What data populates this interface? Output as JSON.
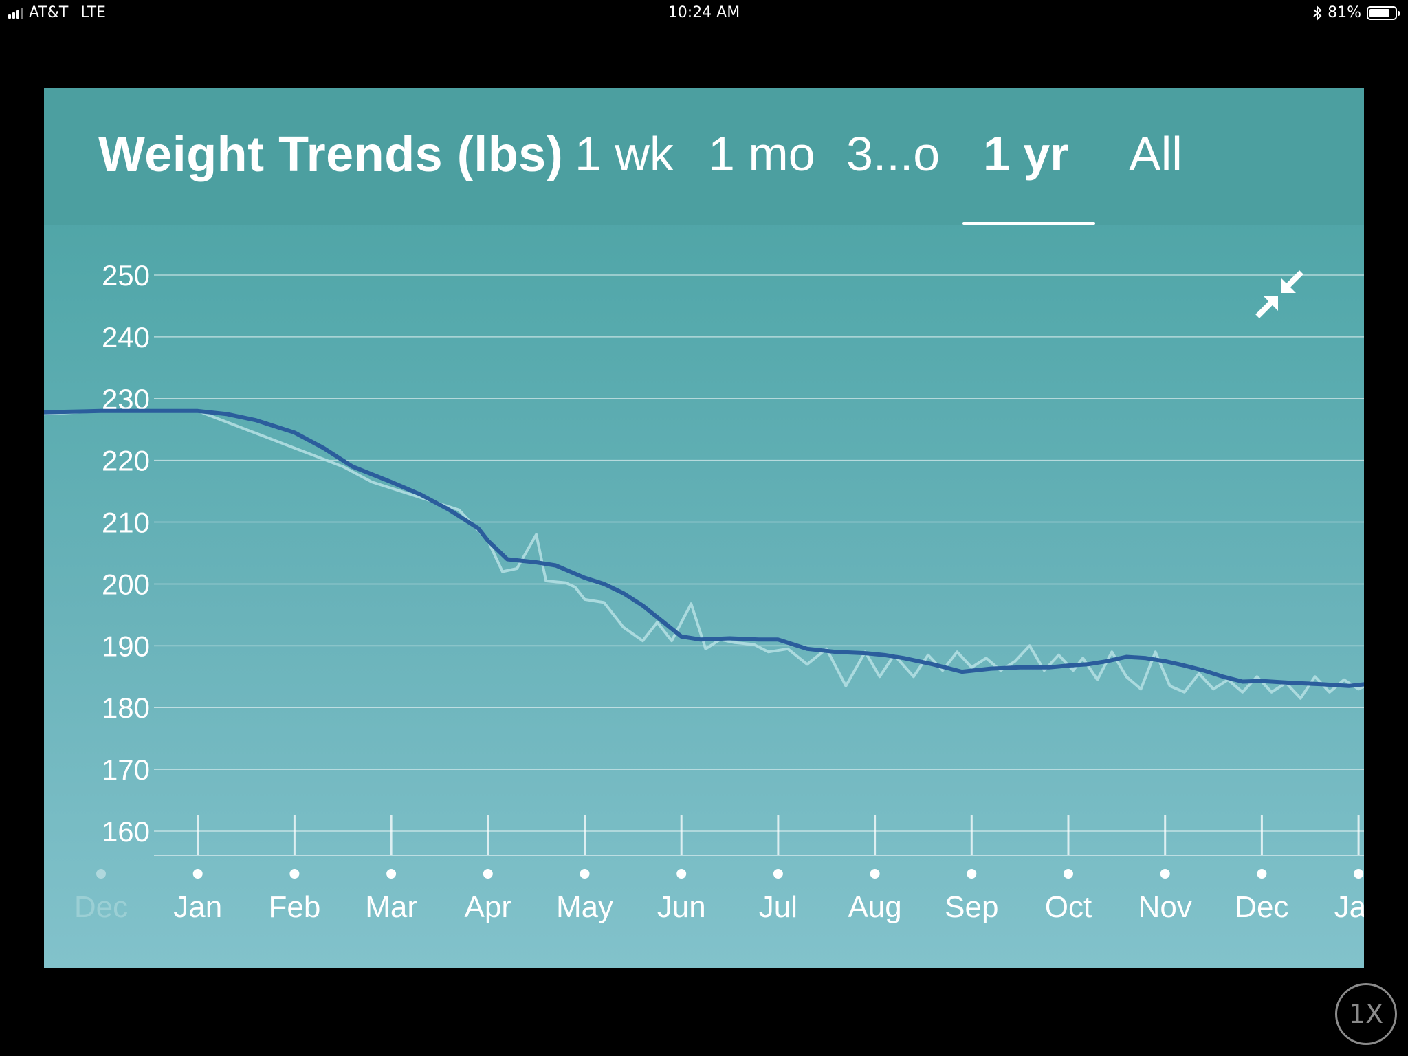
{
  "status_bar": {
    "carrier": "AT&T",
    "network": "LTE",
    "time": "10:24 AM",
    "battery": "81%",
    "battery_level": 0.81
  },
  "header": {
    "title": "Weight Trends (lbs)",
    "tabs": [
      {
        "label": "1 wk",
        "active": false
      },
      {
        "label": "1 mo",
        "active": false
      },
      {
        "label": "3...o",
        "active": false
      },
      {
        "label": "1 yr",
        "active": true
      },
      {
        "label": "All",
        "active": false
      }
    ]
  },
  "icons": {
    "collapse": "collapse-arrows-icon"
  },
  "speed_button": {
    "label": "1X"
  },
  "colors": {
    "panel": "#4c9fa0",
    "trend_line": "#2b5d9c",
    "raw_line": "#b6e0e4"
  },
  "chart_data": {
    "type": "line",
    "ylim": [
      160,
      250
    ],
    "yticks": [
      250,
      240,
      230,
      220,
      210,
      200,
      190,
      180,
      170,
      160
    ],
    "months": [
      {
        "label": "Dec",
        "x": 0,
        "faded": true
      },
      {
        "label": "Jan",
        "x": 1
      },
      {
        "label": "Feb",
        "x": 2
      },
      {
        "label": "Mar",
        "x": 3
      },
      {
        "label": "Apr",
        "x": 4
      },
      {
        "label": "May",
        "x": 5
      },
      {
        "label": "Jun",
        "x": 6
      },
      {
        "label": "Jul",
        "x": 7
      },
      {
        "label": "Aug",
        "x": 8
      },
      {
        "label": "Sep",
        "x": 9
      },
      {
        "label": "Oct",
        "x": 10
      },
      {
        "label": "Nov",
        "x": 11
      },
      {
        "label": "Dec",
        "x": 12
      },
      {
        "label": "Jan",
        "x": 13
      }
    ],
    "grid": true,
    "series": [
      {
        "role": "raw",
        "x": [
          -0.6,
          0.0,
          1.0,
          1.5,
          2.0,
          2.5,
          2.8,
          3.3,
          3.7,
          4.0,
          4.15,
          4.3,
          4.5,
          4.6,
          4.8,
          4.9,
          5.0,
          5.2,
          5.4,
          5.6,
          5.75,
          5.9,
          6.1,
          6.25,
          6.4,
          6.55,
          6.75,
          6.9,
          7.1,
          7.3,
          7.5,
          7.7,
          7.9,
          8.05,
          8.2,
          8.4,
          8.55,
          8.7,
          8.85,
          9.0,
          9.15,
          9.3,
          9.45,
          9.6,
          9.75,
          9.9,
          10.05,
          10.15,
          10.3,
          10.45,
          10.6,
          10.75,
          10.9,
          11.05,
          11.2,
          11.35,
          11.5,
          11.65,
          11.8,
          11.95,
          12.1,
          12.25,
          12.4,
          12.55,
          12.7,
          12.85,
          13.0,
          13.2,
          13.4,
          13.6
        ],
        "values": [
          227.5,
          228.0,
          228.0,
          225.0,
          222.0,
          219.0,
          216.5,
          214.0,
          212.0,
          207.0,
          202.0,
          202.5,
          208.0,
          200.5,
          200.2,
          199.5,
          197.5,
          197.0,
          193.0,
          190.8,
          193.8,
          190.8,
          196.8,
          189.5,
          191.0,
          190.5,
          190.2,
          189.0,
          189.5,
          187.0,
          189.5,
          183.5,
          189.0,
          185.0,
          188.5,
          185.0,
          188.5,
          186.0,
          189.0,
          186.5,
          188.0,
          186.0,
          187.5,
          190.0,
          186.0,
          188.5,
          186.0,
          188.0,
          184.5,
          189.0,
          185.0,
          183.0,
          189.0,
          183.5,
          182.5,
          185.5,
          183.0,
          184.5,
          182.5,
          185.0,
          182.5,
          184.0,
          181.5,
          185.0,
          182.5,
          184.5,
          183.0,
          184.5,
          183.5,
          184.5
        ]
      },
      {
        "role": "trend",
        "x": [
          -0.6,
          0.0,
          0.5,
          1.0,
          1.3,
          1.6,
          2.0,
          2.3,
          2.6,
          3.0,
          3.3,
          3.6,
          3.9,
          4.0,
          4.2,
          4.5,
          4.7,
          5.0,
          5.2,
          5.4,
          5.6,
          5.8,
          6.0,
          6.2,
          6.5,
          6.8,
          7.0,
          7.3,
          7.6,
          7.9,
          8.1,
          8.3,
          8.6,
          8.9,
          9.2,
          9.5,
          9.8,
          10.0,
          10.2,
          10.4,
          10.6,
          10.8,
          11.0,
          11.2,
          11.4,
          11.6,
          11.8,
          12.0,
          12.3,
          12.6,
          12.9,
          13.2,
          13.5
        ],
        "values": [
          227.8,
          228.0,
          228.0,
          228.0,
          227.5,
          226.5,
          224.5,
          222.0,
          219.0,
          216.5,
          214.5,
          212.0,
          209.0,
          207.0,
          204.0,
          203.5,
          203.0,
          201.0,
          200.0,
          198.5,
          196.5,
          194.0,
          191.5,
          191.0,
          191.2,
          191.0,
          191.0,
          189.5,
          189.0,
          188.8,
          188.5,
          188.0,
          187.0,
          185.8,
          186.3,
          186.5,
          186.5,
          186.8,
          187.0,
          187.5,
          188.2,
          188.0,
          187.5,
          186.8,
          186.0,
          185.0,
          184.2,
          184.3,
          184.0,
          183.8,
          183.5,
          184.0,
          184.0
        ]
      }
    ]
  }
}
